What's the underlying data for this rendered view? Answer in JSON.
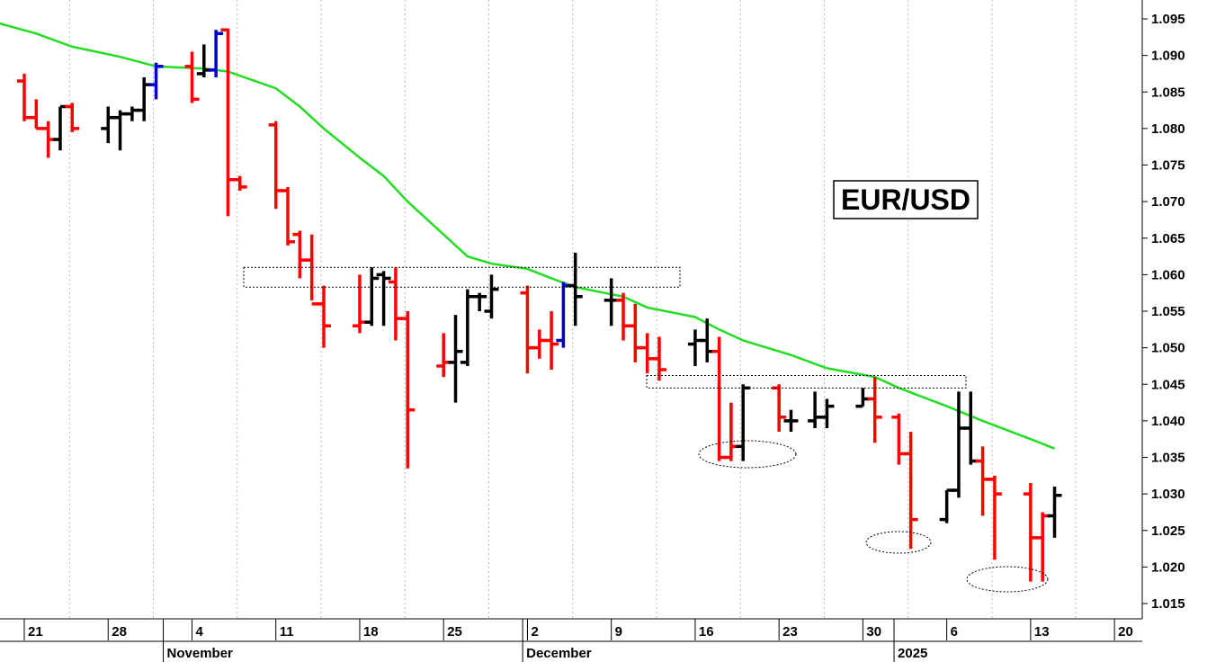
{
  "chart_data": {
    "type": "ohlc-bar",
    "title": "EUR/USD",
    "ylim": [
      1.013,
      1.097
    ],
    "yticks": [
      "1.095",
      "1.090",
      "1.085",
      "1.080",
      "1.075",
      "1.070",
      "1.065",
      "1.060",
      "1.055",
      "1.050",
      "1.045",
      "1.040",
      "1.035",
      "1.030",
      "1.025",
      "1.020",
      "1.015"
    ],
    "xtick_labels": [
      "21",
      "28",
      "4",
      "11",
      "18",
      "25",
      "2",
      "9",
      "16",
      "23",
      "30",
      "6",
      "13",
      "20"
    ],
    "month_labels": [
      "November",
      "December",
      "2025"
    ],
    "grid": true,
    "colors": {
      "down": "#ff0000",
      "up": "#000000",
      "key_reversal": "#0000cc",
      "moving_average": "#22dd22"
    },
    "bars": [
      {
        "date": "2024-10-17",
        "open": 1.086,
        "high": 1.087,
        "low": 1.082,
        "close": 1.0835,
        "color": "red"
      },
      {
        "date": "2024-10-18",
        "open": 1.0835,
        "high": 1.087,
        "low": 1.081,
        "close": 1.0865,
        "color": "red"
      },
      {
        "date": "2024-10-21",
        "open": 1.0865,
        "high": 1.0875,
        "low": 1.081,
        "close": 1.0815,
        "color": "red"
      },
      {
        "date": "2024-10-22",
        "open": 1.0815,
        "high": 1.084,
        "low": 1.08,
        "close": 1.08,
        "color": "red"
      },
      {
        "date": "2024-10-23",
        "open": 1.08,
        "high": 1.081,
        "low": 1.076,
        "close": 1.0785,
        "color": "red"
      },
      {
        "date": "2024-10-24",
        "open": 1.0785,
        "high": 1.083,
        "low": 1.077,
        "close": 1.083,
        "color": "black"
      },
      {
        "date": "2024-10-25",
        "open": 1.083,
        "high": 1.0835,
        "low": 1.0795,
        "close": 1.08,
        "color": "red"
      },
      {
        "date": "2024-10-28",
        "open": 1.08,
        "high": 1.083,
        "low": 1.078,
        "close": 1.0815,
        "color": "black"
      },
      {
        "date": "2024-10-29",
        "open": 1.0815,
        "high": 1.0825,
        "low": 1.077,
        "close": 1.082,
        "color": "black"
      },
      {
        "date": "2024-10-30",
        "open": 1.082,
        "high": 1.083,
        "low": 1.081,
        "close": 1.0825,
        "color": "black"
      },
      {
        "date": "2024-10-31",
        "open": 1.0825,
        "high": 1.087,
        "low": 1.081,
        "close": 1.086,
        "color": "black"
      },
      {
        "date": "2024-11-01",
        "open": 1.086,
        "high": 1.089,
        "low": 1.084,
        "close": 1.0885,
        "color": "blue"
      },
      {
        "date": "2024-11-04",
        "open": 1.0885,
        "high": 1.0905,
        "low": 1.0835,
        "close": 1.084,
        "color": "red"
      },
      {
        "date": "2024-11-05",
        "open": 1.0875,
        "high": 1.0915,
        "low": 1.087,
        "close": 1.088,
        "color": "black"
      },
      {
        "date": "2024-11-06",
        "open": 1.088,
        "high": 1.0935,
        "low": 1.087,
        "close": 1.093,
        "color": "blue"
      },
      {
        "date": "2024-11-07",
        "open": 1.0935,
        "high": 1.0937,
        "low": 1.068,
        "close": 1.073,
        "color": "red"
      },
      {
        "date": "2024-11-08",
        "open": 1.073,
        "high": 1.0735,
        "low": 1.0715,
        "close": 1.072,
        "color": "red"
      },
      {
        "date": "2024-11-11",
        "open": 1.0805,
        "high": 1.081,
        "low": 1.069,
        "close": 1.0715,
        "color": "red"
      },
      {
        "date": "2024-11-12",
        "open": 1.0715,
        "high": 1.072,
        "low": 1.064,
        "close": 1.0645,
        "color": "red"
      },
      {
        "date": "2024-11-13",
        "open": 1.0655,
        "high": 1.066,
        "low": 1.0595,
        "close": 1.062,
        "color": "red"
      },
      {
        "date": "2024-11-14",
        "open": 1.062,
        "high": 1.0655,
        "low": 1.0565,
        "close": 1.056,
        "color": "red"
      },
      {
        "date": "2024-11-15",
        "open": 1.056,
        "high": 1.0585,
        "low": 1.05,
        "close": 1.053,
        "color": "red"
      },
      {
        "date": "2024-11-18",
        "open": 1.053,
        "high": 1.06,
        "low": 1.052,
        "close": 1.0535,
        "color": "red"
      },
      {
        "date": "2024-11-19",
        "open": 1.0535,
        "high": 1.061,
        "low": 1.053,
        "close": 1.0595,
        "color": "black"
      },
      {
        "date": "2024-11-20",
        "open": 1.06,
        "high": 1.0605,
        "low": 1.053,
        "close": 1.0595,
        "color": "black"
      },
      {
        "date": "2024-11-21",
        "open": 1.059,
        "high": 1.061,
        "low": 1.051,
        "close": 1.054,
        "color": "red"
      },
      {
        "date": "2024-11-22",
        "open": 1.054,
        "high": 1.055,
        "low": 1.0335,
        "close": 1.0415,
        "color": "red"
      },
      {
        "date": "2024-11-25",
        "open": 1.0475,
        "high": 1.052,
        "low": 1.046,
        "close": 1.048,
        "color": "red"
      },
      {
        "date": "2024-11-26",
        "open": 1.048,
        "high": 1.0545,
        "low": 1.0425,
        "close": 1.0495,
        "color": "black"
      },
      {
        "date": "2024-11-27",
        "open": 1.048,
        "high": 1.058,
        "low": 1.0475,
        "close": 1.057,
        "color": "black"
      },
      {
        "date": "2024-11-28",
        "open": 1.057,
        "high": 1.0575,
        "low": 1.055,
        "close": 1.057,
        "color": "black"
      },
      {
        "date": "2024-11-29",
        "open": 1.055,
        "high": 1.06,
        "low": 1.054,
        "close": 1.058,
        "color": "black"
      },
      {
        "date": "2024-12-02",
        "open": 1.0575,
        "high": 1.0585,
        "low": 1.0465,
        "close": 1.05,
        "color": "red"
      },
      {
        "date": "2024-12-03",
        "open": 1.05,
        "high": 1.0525,
        "low": 1.0485,
        "close": 1.051,
        "color": "red"
      },
      {
        "date": "2024-12-04",
        "open": 1.051,
        "high": 1.055,
        "low": 1.047,
        "close": 1.0505,
        "color": "red"
      },
      {
        "date": "2024-12-05",
        "open": 1.051,
        "high": 1.059,
        "low": 1.05,
        "close": 1.0585,
        "color": "blue"
      },
      {
        "date": "2024-12-06",
        "open": 1.0585,
        "high": 1.063,
        "low": 1.053,
        "close": 1.057,
        "color": "black"
      },
      {
        "date": "2024-12-09",
        "open": 1.0565,
        "high": 1.0595,
        "low": 1.053,
        "close": 1.0565,
        "color": "black"
      },
      {
        "date": "2024-12-10",
        "open": 1.0565,
        "high": 1.0575,
        "low": 1.051,
        "close": 1.053,
        "color": "red"
      },
      {
        "date": "2024-12-11",
        "open": 1.053,
        "high": 1.056,
        "low": 1.048,
        "close": 1.05,
        "color": "red"
      },
      {
        "date": "2024-12-12",
        "open": 1.05,
        "high": 1.052,
        "low": 1.0465,
        "close": 1.0485,
        "color": "red"
      },
      {
        "date": "2024-12-13",
        "open": 1.0485,
        "high": 1.0515,
        "low": 1.0455,
        "close": 1.047,
        "color": "red"
      },
      {
        "date": "2024-12-16",
        "open": 1.0505,
        "high": 1.0525,
        "low": 1.0475,
        "close": 1.051,
        "color": "black"
      },
      {
        "date": "2024-12-17",
        "open": 1.051,
        "high": 1.054,
        "low": 1.048,
        "close": 1.0495,
        "color": "black"
      },
      {
        "date": "2024-12-18",
        "open": 1.0495,
        "high": 1.0515,
        "low": 1.0345,
        "close": 1.035,
        "color": "red"
      },
      {
        "date": "2024-12-19",
        "open": 1.035,
        "high": 1.0425,
        "low": 1.0345,
        "close": 1.0365,
        "color": "red"
      },
      {
        "date": "2024-12-20",
        "open": 1.0365,
        "high": 1.045,
        "low": 1.0345,
        "close": 1.0445,
        "color": "black"
      },
      {
        "date": "2024-12-23",
        "open": 1.0445,
        "high": 1.045,
        "low": 1.0385,
        "close": 1.0405,
        "color": "red"
      },
      {
        "date": "2024-12-24",
        "open": 1.04,
        "high": 1.0415,
        "low": 1.0385,
        "close": 1.04,
        "color": "black"
      },
      {
        "date": "2024-12-26",
        "open": 1.04,
        "high": 1.044,
        "low": 1.039,
        "close": 1.0405,
        "color": "black"
      },
      {
        "date": "2024-12-27",
        "open": 1.0405,
        "high": 1.043,
        "low": 1.039,
        "close": 1.042,
        "color": "black"
      },
      {
        "date": "2024-12-30",
        "open": 1.042,
        "high": 1.0445,
        "low": 1.042,
        "close": 1.043,
        "color": "black"
      },
      {
        "date": "2024-12-31",
        "open": 1.043,
        "high": 1.046,
        "low": 1.037,
        "close": 1.0405,
        "color": "red"
      },
      {
        "date": "2025-01-02",
        "open": 1.0405,
        "high": 1.041,
        "low": 1.034,
        "close": 1.0355,
        "color": "red"
      },
      {
        "date": "2025-01-03",
        "open": 1.0355,
        "high": 1.0385,
        "low": 1.0225,
        "close": 1.0265,
        "color": "red"
      },
      {
        "date": "2025-01-06",
        "open": 1.0265,
        "high": 1.0305,
        "low": 1.026,
        "close": 1.0305,
        "color": "black"
      },
      {
        "date": "2025-01-07",
        "open": 1.0305,
        "high": 1.044,
        "low": 1.0295,
        "close": 1.039,
        "color": "black"
      },
      {
        "date": "2025-01-08",
        "open": 1.039,
        "high": 1.044,
        "low": 1.034,
        "close": 1.0345,
        "color": "black"
      },
      {
        "date": "2025-01-09",
        "open": 1.0345,
        "high": 1.0365,
        "low": 1.027,
        "close": 1.032,
        "color": "red"
      },
      {
        "date": "2025-01-10",
        "open": 1.032,
        "high": 1.0325,
        "low": 1.021,
        "close": 1.03,
        "color": "red"
      },
      {
        "date": "2025-01-13",
        "open": 1.03,
        "high": 1.0315,
        "low": 1.018,
        "close": 1.024,
        "color": "red"
      },
      {
        "date": "2025-01-14",
        "open": 1.024,
        "high": 1.0275,
        "low": 1.018,
        "close": 1.027,
        "color": "red"
      },
      {
        "date": "2025-01-15",
        "open": 1.027,
        "high": 1.031,
        "low": 1.024,
        "close": 1.0298,
        "color": "black"
      }
    ],
    "moving_average": [
      {
        "date": "2024-10-15",
        "value": 1.0963
      },
      {
        "date": "2024-10-18",
        "value": 1.0948
      },
      {
        "date": "2024-10-22",
        "value": 1.093
      },
      {
        "date": "2024-10-25",
        "value": 1.0912
      },
      {
        "date": "2024-10-29",
        "value": 1.0898
      },
      {
        "date": "2024-11-01",
        "value": 1.0885
      },
      {
        "date": "2024-11-05",
        "value": 1.0882
      },
      {
        "date": "2024-11-07",
        "value": 1.0878
      },
      {
        "date": "2024-11-11",
        "value": 1.0855
      },
      {
        "date": "2024-11-13",
        "value": 1.083
      },
      {
        "date": "2024-11-15",
        "value": 1.08
      },
      {
        "date": "2024-11-18",
        "value": 1.076
      },
      {
        "date": "2024-11-20",
        "value": 1.0735
      },
      {
        "date": "2024-11-22",
        "value": 1.07
      },
      {
        "date": "2024-11-25",
        "value": 1.0655
      },
      {
        "date": "2024-11-27",
        "value": 1.0625
      },
      {
        "date": "2024-11-29",
        "value": 1.0615
      },
      {
        "date": "2024-12-02",
        "value": 1.0608
      },
      {
        "date": "2024-12-04",
        "value": 1.0595
      },
      {
        "date": "2024-12-06",
        "value": 1.0583
      },
      {
        "date": "2024-12-10",
        "value": 1.057
      },
      {
        "date": "2024-12-12",
        "value": 1.0555
      },
      {
        "date": "2024-12-16",
        "value": 1.0542
      },
      {
        "date": "2024-12-18",
        "value": 1.0525
      },
      {
        "date": "2024-12-20",
        "value": 1.051
      },
      {
        "date": "2024-12-24",
        "value": 1.049
      },
      {
        "date": "2024-12-27",
        "value": 1.0472
      },
      {
        "date": "2024-12-31",
        "value": 1.046
      },
      {
        "date": "2025-01-02",
        "value": 1.0445
      },
      {
        "date": "2025-01-06",
        "value": 1.042
      },
      {
        "date": "2025-01-09",
        "value": 1.04
      },
      {
        "date": "2025-01-13",
        "value": 1.0375
      },
      {
        "date": "2025-01-15",
        "value": 1.0362
      }
    ],
    "annotations": {
      "resistance_zones": [
        {
          "from": "2024-11-14",
          "to": "2025-01-13",
          "top": 1.061,
          "bottom": 1.0583
        },
        {
          "from": "2024-12-11",
          "to": "2025-01-15",
          "top": 1.0462,
          "bottom": 1.0445
        }
      ],
      "support_ellipses": [
        {
          "date": "2024-12-19",
          "level": 1.035
        },
        {
          "date": "2025-01-03",
          "level": 1.0225
        },
        {
          "date": "2025-01-13",
          "level": 1.0183
        }
      ]
    }
  }
}
